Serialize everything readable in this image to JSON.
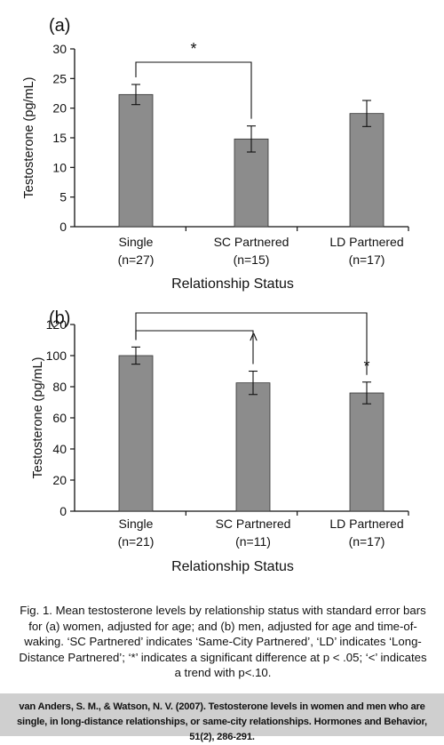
{
  "chart_data": [
    {
      "type": "bar",
      "panel_label": "(a)",
      "categories": [
        "Single",
        "SC Partnered",
        "LD Partnered"
      ],
      "category_counts": [
        "(n=27)",
        "(n=15)",
        "(n=17)"
      ],
      "values": [
        22.3,
        14.8,
        19.1
      ],
      "errors": [
        1.7,
        2.2,
        2.2
      ],
      "ylabel": "Testosterone (pg/mL)",
      "xlabel": "Relationship Status",
      "ylim": [
        0,
        30
      ],
      "yticks": [
        0,
        5,
        10,
        15,
        20,
        25,
        30
      ],
      "bar_color": "#8c8c8c",
      "annotations": [
        {
          "from": 0,
          "to": 1,
          "symbol": "*"
        }
      ]
    },
    {
      "type": "bar",
      "panel_label": "(b)",
      "categories": [
        "Single",
        "SC Partnered",
        "LD Partnered"
      ],
      "category_counts": [
        "(n=21)",
        "(n=11)",
        "(n=17)"
      ],
      "values": [
        100,
        82.5,
        76
      ],
      "errors": [
        5.5,
        7.5,
        7
      ],
      "ylabel": "Testosterone (pg/mL)",
      "xlabel": "Relationship Status",
      "ylim": [
        0,
        120
      ],
      "yticks": [
        0,
        20,
        40,
        60,
        80,
        100,
        120
      ],
      "bar_color": "#8c8c8c",
      "annotations": [
        {
          "from": 0,
          "to": 2,
          "symbol": "*"
        },
        {
          "from": 0,
          "to": 1,
          "symbol": "<"
        }
      ]
    }
  ],
  "caption": "Fig. 1. Mean testosterone levels by relationship status with standard error bars for (a) women, adjusted for age; and (b) men, adjusted for age and time-of- waking. ‘SC Partnered’ indicates ‘Same-City Partnered’, ‘LD’ indicates ‘Long- Distance Partnered’; ‘*’ indicates a significant difference at p < .05; ‘<’ indicates a trend with p<.10.",
  "citation": "van Anders, S. M., & Watson, N. V. (2007). Testosterone levels in women and men who are single, in long-distance relationships, or same-city relationships. Hormones and Behavior, 51(2), 286-291."
}
